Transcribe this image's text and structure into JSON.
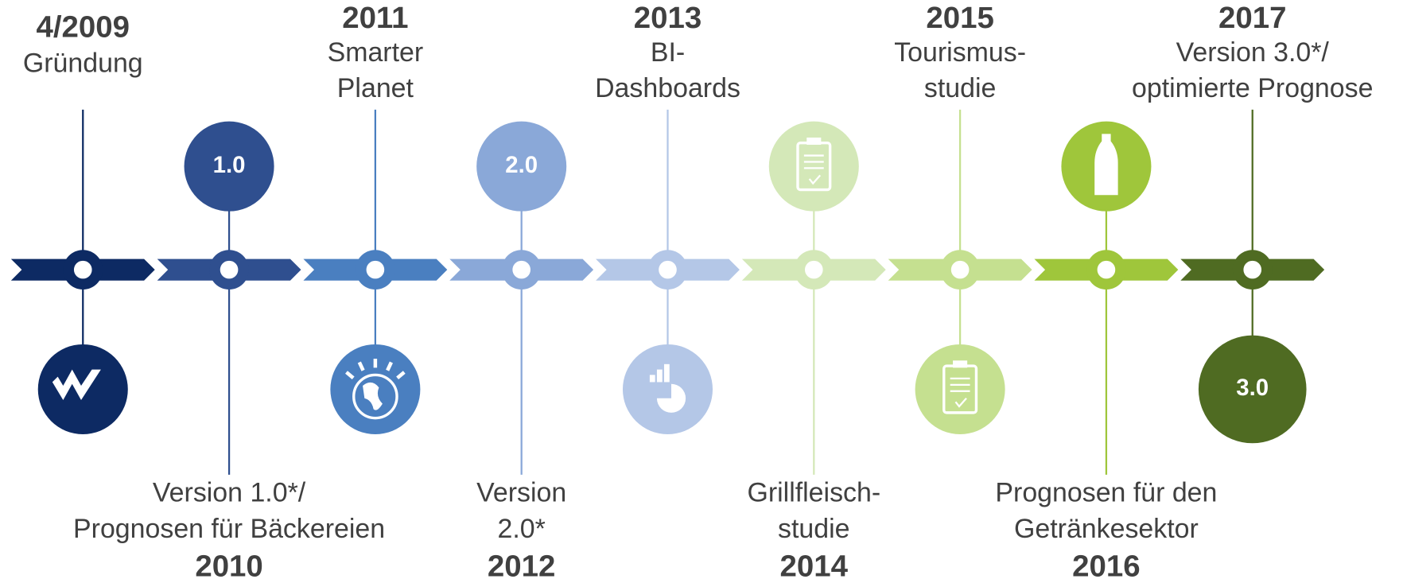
{
  "milestones": [
    {
      "year": "4/2009",
      "lines": [
        "Gründung"
      ]
    },
    {
      "year": "2010",
      "lines": [
        "Version 1.0*/",
        "Prognosen für Bäckereien"
      ],
      "badge": "1.0"
    },
    {
      "year": "2011",
      "lines": [
        "Smarter",
        "Planet"
      ]
    },
    {
      "year": "2012",
      "lines": [
        "Version",
        "2.0*"
      ],
      "badge": "2.0"
    },
    {
      "year": "2013",
      "lines": [
        "BI-",
        "Dashboards"
      ]
    },
    {
      "year": "2014",
      "lines": [
        "Grillfleisch-",
        "studie"
      ]
    },
    {
      "year": "2015",
      "lines": [
        "Tourismus-",
        "studie"
      ]
    },
    {
      "year": "2016",
      "lines": [
        "Prognosen für den",
        "Getränkesektor"
      ]
    },
    {
      "year": "2017",
      "lines": [
        "Version 3.0*/",
        "optimierte Prognose"
      ],
      "badge": "3.0"
    }
  ]
}
